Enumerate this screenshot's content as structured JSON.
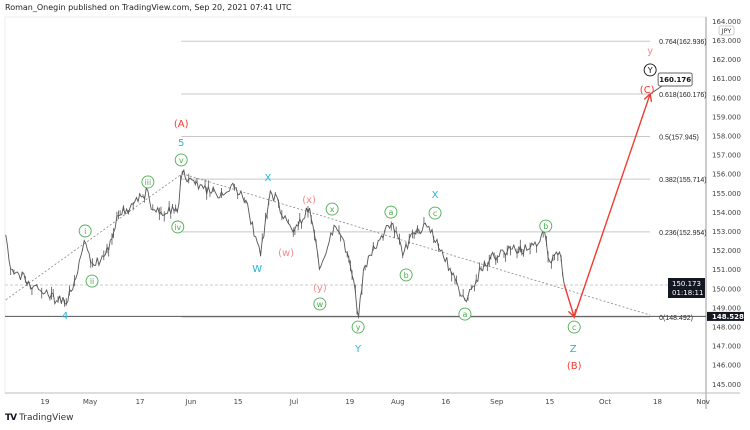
{
  "header": {
    "publish_text": "Roman_Onegin published on TradingView.com, Sep 20, 2021 07:41 UTC"
  },
  "footer": {
    "brand": "TradingView",
    "logo_text": "TV"
  },
  "chart_data": {
    "type": "line",
    "title": "",
    "currency_badge": "JPY",
    "ylim": [
      144.5,
      164.2
    ],
    "y_ticks": [
      "164.000",
      "163.000",
      "162.000",
      "161.000",
      "160.000",
      "159.000",
      "158.000",
      "157.000",
      "156.000",
      "155.000",
      "154.000",
      "153.000",
      "152.000",
      "151.000",
      "150.000",
      "149.000",
      "148.000",
      "147.000",
      "146.000",
      "145.000"
    ],
    "y_tick_values": [
      164,
      163,
      162,
      161,
      160,
      159,
      158,
      157,
      156,
      155,
      154,
      153,
      152,
      151,
      150,
      149,
      148,
      147,
      146,
      145
    ],
    "x_unit": "trading bars from Apr 19, 2021",
    "x_ticks": [
      {
        "label": "19",
        "bar": 0
      },
      {
        "label": "May",
        "bar": 9.2
      },
      {
        "label": "17",
        "bar": 19.4
      },
      {
        "label": "Jun",
        "bar": 29.8
      },
      {
        "label": "15",
        "bar": 39.4
      },
      {
        "label": "Jul",
        "bar": 50.8
      },
      {
        "label": "19",
        "bar": 62.2
      },
      {
        "label": "Aug",
        "bar": 72
      },
      {
        "label": "16",
        "bar": 81.8
      },
      {
        "label": "Sep",
        "bar": 92.2
      },
      {
        "label": "15",
        "bar": 103
      },
      {
        "label": "Oct",
        "bar": 114.3
      },
      {
        "label": "18",
        "bar": 125
      },
      {
        "label": "Nov",
        "bar": 134.3
      }
    ],
    "price_series": [
      [
        -8,
        152.8
      ],
      [
        -7,
        151.0
      ],
      [
        -1,
        149.9
      ],
      [
        4,
        149.2
      ],
      [
        6,
        150.4
      ],
      [
        8,
        152.5
      ],
      [
        10,
        151.2
      ],
      [
        13,
        152.0
      ],
      [
        15,
        153.8
      ],
      [
        18,
        154.4
      ],
      [
        21,
        155.1
      ],
      [
        22,
        154.1
      ],
      [
        27,
        154.0
      ],
      [
        28,
        156.0
      ],
      [
        32,
        155.4
      ],
      [
        35,
        154.9
      ],
      [
        38,
        155.4
      ],
      [
        41,
        154.6
      ],
      [
        43,
        152.7
      ],
      [
        44,
        151.7
      ],
      [
        46,
        155.1
      ],
      [
        49,
        153.8
      ],
      [
        51,
        153.1
      ],
      [
        54,
        154.2
      ],
      [
        55,
        152.8
      ],
      [
        56,
        151.0
      ],
      [
        59,
        153.3
      ],
      [
        61,
        152.5
      ],
      [
        63,
        150.4
      ],
      [
        64,
        148.5
      ],
      [
        65,
        151.0
      ],
      [
        68,
        152.5
      ],
      [
        71,
        153.4
      ],
      [
        73,
        151.7
      ],
      [
        75,
        152.9
      ],
      [
        78,
        153.2
      ],
      [
        81,
        152.0
      ],
      [
        83,
        150.7
      ],
      [
        86,
        149.3
      ],
      [
        89,
        151.0
      ],
      [
        93,
        152.0
      ],
      [
        96,
        152.0
      ],
      [
        99,
        152.1
      ],
      [
        102,
        152.9
      ],
      [
        103,
        151.4
      ],
      [
        105,
        151.9
      ],
      [
        106,
        150.173
      ]
    ],
    "projection": [
      [
        106,
        150.173
      ],
      [
        108,
        148.5
      ],
      [
        123.5,
        160.176
      ]
    ],
    "fib_levels": [
      {
        "label": "0.764(162.936)",
        "value": 162.936
      },
      {
        "label": "0.618(160.176)",
        "value": 160.176
      },
      {
        "label": "0.5(157.945)",
        "value": 157.945
      },
      {
        "label": "0.382(155.714)",
        "value": 155.714
      },
      {
        "label": "0.236(152.954)",
        "value": 152.954
      },
      {
        "label": "0(148.492)",
        "value": 148.492
      }
    ],
    "fib_range_bars": [
      27.8,
      123.5
    ],
    "trendlines": [
      {
        "from": [
          -8,
          149.4
        ],
        "to": [
          28,
          156.0
        ]
      },
      {
        "from": [
          28,
          156.0
        ],
        "to": [
          123.5,
          148.6
        ]
      }
    ],
    "last_price": {
      "value": 150.173,
      "label": "150.173",
      "countdown": "01:18:11"
    },
    "level_price": {
      "value": 148.528,
      "label": "148.528"
    },
    "callout": {
      "label": "160.176",
      "bar": 123.5,
      "value": 160.176
    },
    "wave_labels": [
      {
        "text": "(A)",
        "style": "red",
        "bar": 27.8,
        "price": 158.65
      },
      {
        "text": "5",
        "style": "cyan",
        "bar": 27.8,
        "price": 157.66
      },
      {
        "text": "v",
        "style": "circle",
        "bar": 27.8,
        "price": 156.72
      },
      {
        "text": "iii",
        "style": "circle",
        "bar": 21,
        "price": 155.57
      },
      {
        "text": "i",
        "style": "circle",
        "bar": 8.2,
        "price": 153.0
      },
      {
        "text": "ii",
        "style": "circle",
        "bar": 9.6,
        "price": 150.38
      },
      {
        "text": "iv",
        "style": "circle",
        "bar": 27.1,
        "price": 153.21
      },
      {
        "text": "4",
        "style": "cyan",
        "bar": 4.1,
        "price": 148.6
      },
      {
        "text": "X",
        "style": "cyan",
        "bar": 45.5,
        "price": 155.83
      },
      {
        "text": "W",
        "style": "cyan",
        "bar": 43.3,
        "price": 151.06
      },
      {
        "text": "(x)",
        "style": "pink",
        "bar": 53.9,
        "price": 154.68
      },
      {
        "text": "(w)",
        "style": "pink",
        "bar": 49.2,
        "price": 151.9
      },
      {
        "text": "(y)",
        "style": "pink",
        "bar": 56.1,
        "price": 150.07
      },
      {
        "text": "x",
        "style": "circle",
        "bar": 58.6,
        "price": 154.15
      },
      {
        "text": "w",
        "style": "circle",
        "bar": 56.1,
        "price": 149.18
      },
      {
        "text": "y",
        "style": "circle",
        "bar": 63.9,
        "price": 147.97
      },
      {
        "text": "Y",
        "style": "cyan",
        "bar": 63.9,
        "price": 146.87
      },
      {
        "text": "a",
        "style": "circle",
        "bar": 70.6,
        "price": 153.99
      },
      {
        "text": "b",
        "style": "circle",
        "bar": 73.7,
        "price": 150.7
      },
      {
        "text": "X",
        "style": "cyan",
        "bar": 79.6,
        "price": 154.94
      },
      {
        "text": "c",
        "style": "circle",
        "bar": 79.6,
        "price": 153.94
      },
      {
        "text": "a",
        "style": "circle",
        "bar": 85.7,
        "price": 148.65
      },
      {
        "text": "b",
        "style": "circle",
        "bar": 102.2,
        "price": 153.26
      },
      {
        "text": "c",
        "style": "circle",
        "bar": 108,
        "price": 147.97
      },
      {
        "text": "Z",
        "style": "cyan",
        "bar": 107.8,
        "price": 146.87
      },
      {
        "text": "(B)",
        "style": "red",
        "bar": 108,
        "price": 145.98
      },
      {
        "text": "y",
        "style": "pink",
        "bar": 123.5,
        "price": 162.48
      },
      {
        "text": "Y",
        "style": "blackcircle",
        "bar": 123.5,
        "price": 161.43
      },
      {
        "text": "(C)",
        "style": "red",
        "bar": 122.9,
        "price": 160.43
      }
    ],
    "colors": {
      "price": "#555555",
      "projection": "#f23a2e",
      "green": "#4caf50",
      "cyan": "#26b5d9",
      "pink": "#f08c8c",
      "red": "#f23a2e",
      "fib": "#c8c8c8"
    }
  }
}
